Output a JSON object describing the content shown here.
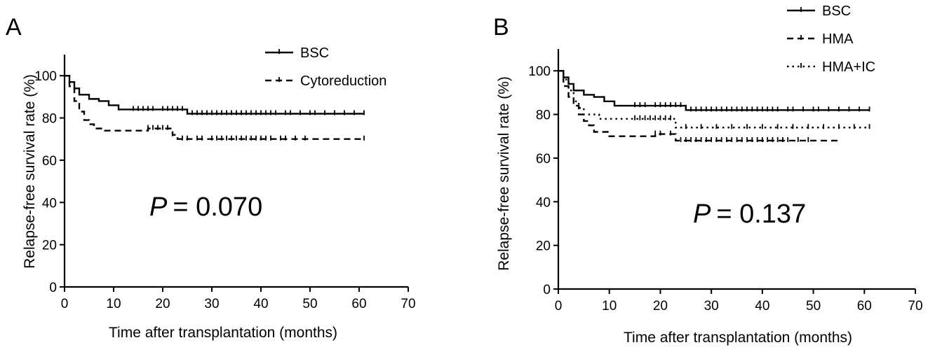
{
  "chart_data": [
    {
      "type": "line",
      "panel": "A",
      "xlabel": "Time after transplantation (months)",
      "ylabel": "Relapse-free survival rate (%)",
      "xlim": [
        0,
        70
      ],
      "ylim": [
        0,
        110
      ],
      "xticks": [
        0,
        10,
        20,
        30,
        40,
        50,
        60,
        70
      ],
      "yticks": [
        0,
        20,
        40,
        60,
        80,
        100
      ],
      "grid": false,
      "legend_position": "top-right",
      "annotation": {
        "prefix": "P",
        "text": "= 0.070"
      },
      "series": [
        {
          "name": "BSC",
          "dash": "solid",
          "x": [
            0,
            1,
            2,
            3,
            5,
            7,
            9,
            11,
            25,
            61
          ],
          "y": [
            100,
            97,
            94,
            91,
            89,
            88,
            86,
            84,
            82,
            82
          ],
          "censor_x": [
            14,
            15,
            16,
            17,
            18,
            20,
            21,
            22,
            23,
            24,
            26,
            27,
            28,
            29,
            30,
            31,
            32,
            33,
            34,
            35,
            36,
            37,
            38,
            39,
            40,
            41,
            42,
            43,
            45,
            46,
            48,
            50,
            51,
            53,
            55,
            57,
            59,
            61
          ]
        },
        {
          "name": "Cytoreduction",
          "dash": "dashed",
          "x": [
            0,
            1,
            2,
            3,
            4,
            5,
            6,
            8,
            17,
            22,
            23,
            61
          ],
          "y": [
            100,
            95,
            88,
            83,
            79,
            77,
            75,
            74,
            75,
            72,
            70,
            70
          ],
          "censor_x": [
            17,
            18,
            19,
            20,
            21,
            22,
            24,
            25,
            27,
            28,
            30,
            31,
            32,
            33,
            34,
            35,
            36,
            37,
            38,
            39,
            40,
            41,
            42,
            44,
            45,
            47,
            49,
            61
          ]
        }
      ]
    },
    {
      "type": "line",
      "panel": "B",
      "xlabel": "Time after transplantation (months)",
      "ylabel": "Relapse-free survival rate (%)",
      "xlim": [
        0,
        70
      ],
      "ylim": [
        0,
        110
      ],
      "xticks": [
        0,
        10,
        20,
        30,
        40,
        50,
        60,
        70
      ],
      "yticks": [
        0,
        20,
        40,
        60,
        80,
        100
      ],
      "grid": false,
      "legend_position": "top-right",
      "annotation": {
        "prefix": "P",
        "text": "= 0.137"
      },
      "series": [
        {
          "name": "BSC",
          "dash": "solid",
          "x": [
            0,
            1,
            2,
            3,
            5,
            7,
            9,
            11,
            25,
            61
          ],
          "y": [
            100,
            97,
            94,
            91,
            89,
            88,
            86,
            84,
            82,
            82
          ],
          "censor_x": [
            15,
            16,
            17,
            19,
            20,
            21,
            22,
            23,
            24,
            26,
            27,
            28,
            29,
            30,
            31,
            32,
            33,
            34,
            35,
            36,
            37,
            38,
            39,
            40,
            41,
            42,
            43,
            45,
            46,
            48,
            50,
            51,
            53,
            55,
            57,
            59,
            61
          ]
        },
        {
          "name": "HMA",
          "dash": "dashed",
          "x": [
            0,
            1,
            2,
            3,
            4,
            5,
            6,
            7,
            10,
            19,
            23,
            55
          ],
          "y": [
            100,
            93,
            88,
            84,
            80,
            77,
            75,
            72,
            70,
            71,
            68,
            68
          ],
          "censor_x": [
            19,
            20,
            22,
            24,
            25,
            26,
            27,
            28,
            29,
            30,
            31,
            32,
            33,
            34,
            35,
            36,
            37,
            38,
            39,
            40,
            41,
            42,
            43,
            44,
            45,
            47,
            49
          ]
        },
        {
          "name": "HMA+IC",
          "dash": "dotted",
          "x": [
            0,
            1,
            2,
            3,
            4,
            5,
            8,
            23,
            61
          ],
          "y": [
            100,
            96,
            91,
            86,
            83,
            80,
            78,
            74,
            74
          ],
          "censor_x": [
            15,
            16,
            17,
            18,
            19,
            20,
            21,
            22,
            25,
            28,
            31,
            34,
            37,
            40,
            43,
            46,
            49,
            52,
            55,
            58,
            61
          ]
        }
      ]
    }
  ]
}
